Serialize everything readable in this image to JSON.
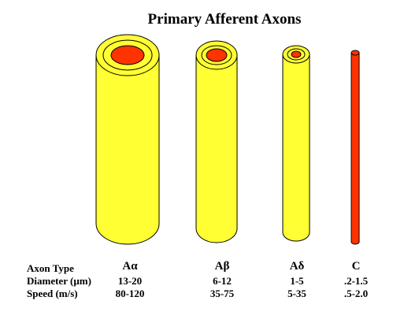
{
  "title": "Primary Afferent Axons",
  "colors": {
    "myelin": "#ffff33",
    "myelin_outline": "#000000",
    "axon": "#ff3300"
  },
  "rows": {
    "type": "Axon Type",
    "diameter": "Diameter  (µm)",
    "speed": "Speed (m/s)"
  },
  "axons": [
    {
      "name": "Aα",
      "diameter": "13-20",
      "speed": "80-120",
      "myelinated": true
    },
    {
      "name": "Aβ",
      "diameter": "6-12",
      "speed": "35-75",
      "myelinated": true
    },
    {
      "name": "Aδ",
      "diameter": "1-5",
      "speed": "5-35",
      "myelinated": true
    },
    {
      "name": "C",
      "diameter": ".2-1.5",
      "speed": ".5-2.0",
      "myelinated": false
    }
  ]
}
